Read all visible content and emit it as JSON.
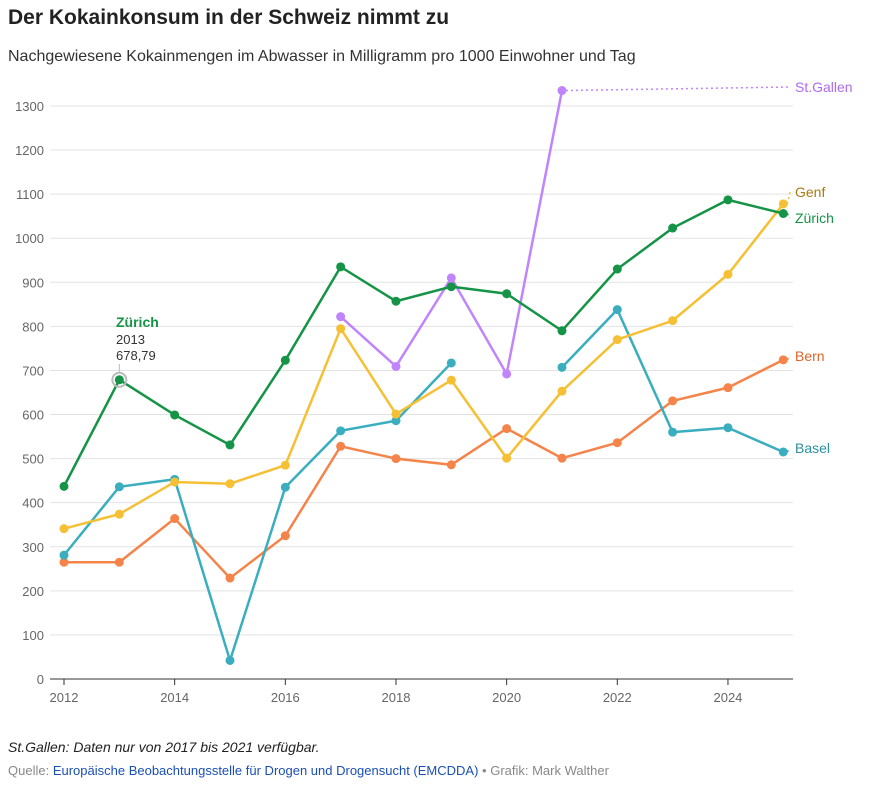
{
  "title": "Der Kokainkonsum in der Schweiz nimmt zu",
  "subtitle": "Nachgewiesene Kokainmengen im Abwasser in Milligramm pro 1000 Einwohner und Tag",
  "footer": {
    "note": "St.Gallen: Daten nur von 2017 bis 2021 verfügbar.",
    "source_prefix": "Quelle: ",
    "source_link": "Europäische Beobachtungsstelle für Drogen und Drogensucht (EMCDDA)",
    "credit": " • Grafik: Mark Walther"
  },
  "chart_data": {
    "type": "line",
    "x": [
      2012,
      2013,
      2014,
      2015,
      2016,
      2017,
      2018,
      2019,
      2020,
      2021,
      2022,
      2023,
      2024,
      2025
    ],
    "xticks": [
      2012,
      2014,
      2016,
      2018,
      2020,
      2022,
      2024
    ],
    "yticks": [
      0,
      100,
      200,
      300,
      400,
      500,
      600,
      700,
      800,
      900,
      1000,
      1100,
      1200,
      1300
    ],
    "ylim": [
      0,
      1330
    ],
    "grid": true,
    "series": [
      {
        "name": "Zürich",
        "color": "#159447",
        "values": [
          437,
          678.79,
          599,
          531,
          723,
          935,
          857,
          890,
          874,
          790,
          930,
          1023,
          1087,
          1056
        ]
      },
      {
        "name": "Genf",
        "color": "#f5c034",
        "label_color": "#a87a10",
        "values": [
          341,
          374,
          447,
          443,
          485,
          795,
          601,
          678,
          501,
          653,
          770,
          813,
          918,
          1078
        ]
      },
      {
        "name": "Basel",
        "color": "#3aaebf",
        "label_color": "#2a8fa0",
        "values": [
          281,
          436,
          453,
          42,
          435,
          563,
          586,
          717,
          null,
          707,
          838,
          560,
          570,
          515
        ]
      },
      {
        "name": "Bern",
        "color": "#f5844a",
        "label_color": "#e0642a",
        "values": [
          265,
          265,
          364,
          229,
          325,
          528,
          500,
          486,
          568,
          501,
          536,
          631,
          661,
          724
        ]
      },
      {
        "name": "St.Gallen",
        "color": "#c084fc",
        "label_color": "#b06af0",
        "values": [
          null,
          null,
          null,
          null,
          null,
          822,
          709,
          910,
          692,
          1335,
          null,
          null,
          null,
          null
        ]
      }
    ],
    "annotation": {
      "series": "Zürich",
      "year": "2013",
      "value": "678,79"
    }
  }
}
